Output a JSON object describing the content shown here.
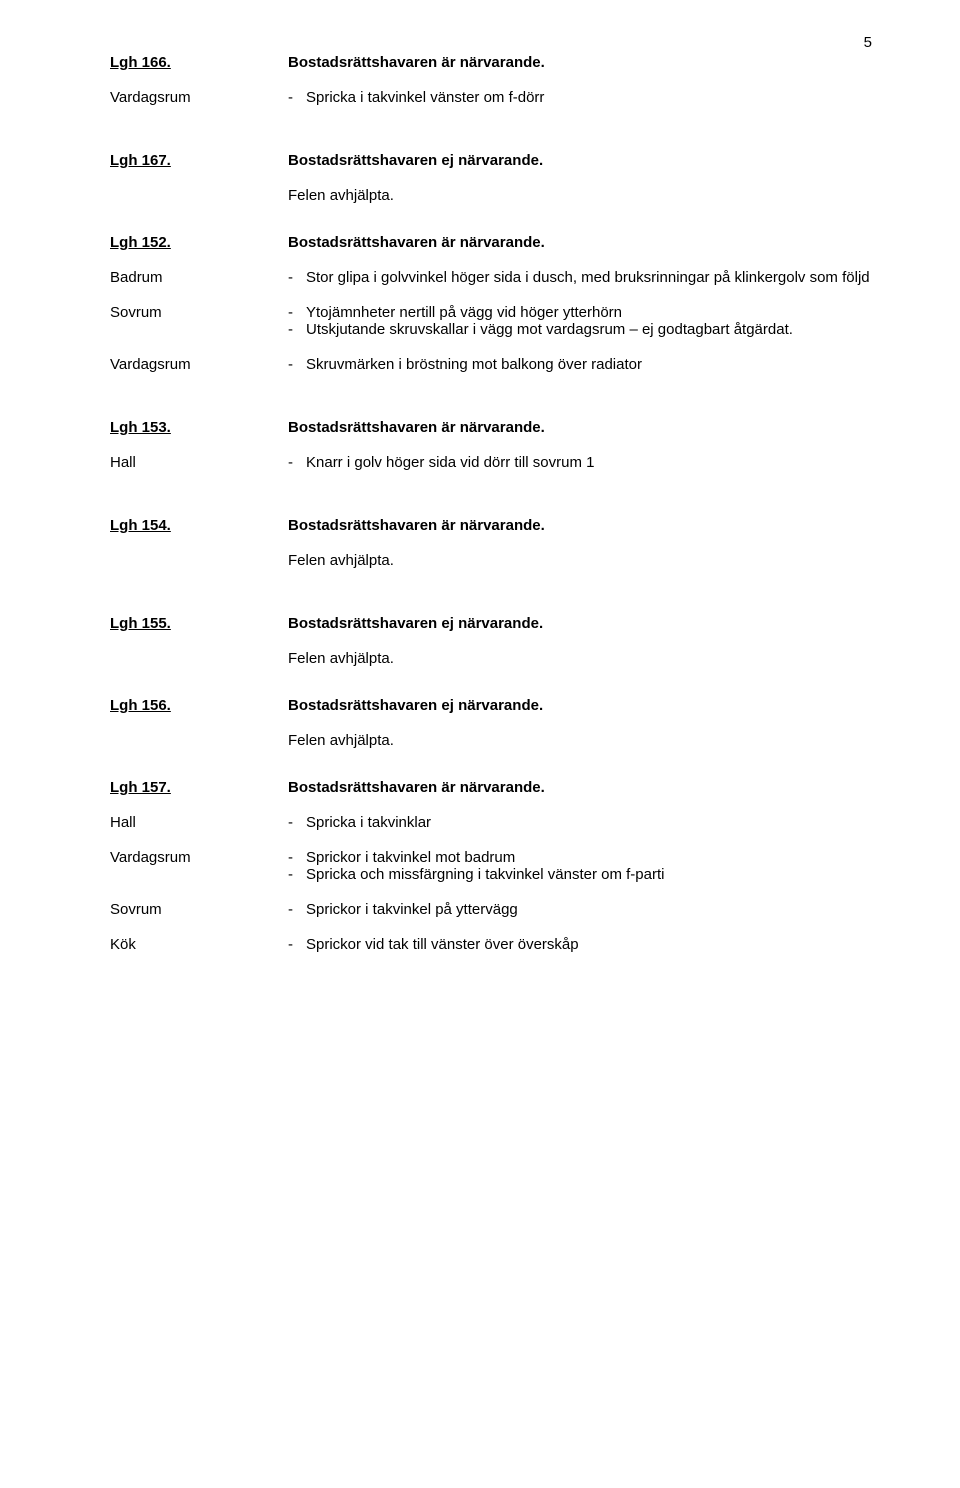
{
  "page_number": "5",
  "sections": [
    {
      "heading_label": "Lgh 166.",
      "heading_status": "Bostadsrättshavaren är närvarande.",
      "items": [
        {
          "room": "Vardagsrum",
          "lines": [
            "Spricka i takvinkel vänster om f-dörr"
          ]
        }
      ]
    },
    {
      "heading_label": "Lgh 167.",
      "heading_status": "Bostadsrättshavaren ej närvarande.",
      "note": "Felen avhjälpta."
    },
    {
      "heading_label": "Lgh 152.",
      "heading_status": "Bostadsrättshavaren är närvarande.",
      "items": [
        {
          "room": "Badrum",
          "lines": [
            "Stor glipa i golvvinkel höger sida i dusch, med bruksrinningar på klinkergolv som följd"
          ]
        },
        {
          "room": "Sovrum",
          "lines": [
            "Ytojämnheter nertill på vägg vid höger ytterhörn",
            "Utskjutande skruvskallar i vägg mot vardagsrum – ej godtagbart åtgärdat."
          ]
        },
        {
          "room": "Vardagsrum",
          "lines": [
            "Skruvmärken i bröstning mot balkong över radiator"
          ]
        }
      ]
    },
    {
      "heading_label": "Lgh 153.",
      "heading_status": "Bostadsrättshavaren är närvarande.",
      "items": [
        {
          "room": "Hall",
          "lines": [
            "Knarr i golv höger sida vid dörr till sovrum 1"
          ]
        }
      ]
    },
    {
      "heading_label": "Lgh 154.",
      "heading_status": "Bostadsrättshavaren är närvarande.",
      "note": "Felen avhjälpta."
    },
    {
      "heading_label": "Lgh 155.",
      "heading_status": "Bostadsrättshavaren ej närvarande.",
      "note": "Felen avhjälpta."
    },
    {
      "heading_label": "Lgh 156.",
      "heading_status": "Bostadsrättshavaren ej närvarande.",
      "note": "Felen avhjälpta."
    },
    {
      "heading_label": "Lgh 157.",
      "heading_status": "Bostadsrättshavaren är närvarande.",
      "items": [
        {
          "room": "Hall",
          "lines": [
            "Spricka i takvinklar"
          ]
        },
        {
          "room": "Vardagsrum",
          "lines": [
            "Sprickor i takvinkel mot badrum",
            "Spricka och missfärgning i takvinkel vänster om f-parti"
          ]
        },
        {
          "room": "Sovrum",
          "lines": [
            "Sprickor i takvinkel på yttervägg"
          ]
        },
        {
          "room": "Kök",
          "lines": [
            "Sprickor vid tak till vänster över överskåp"
          ]
        }
      ]
    }
  ]
}
